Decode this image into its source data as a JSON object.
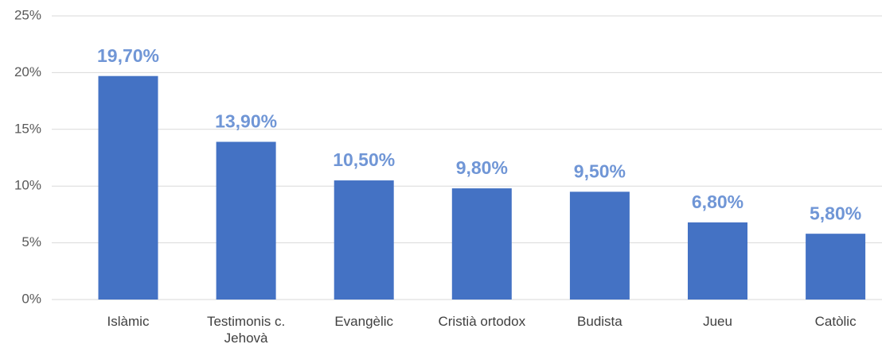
{
  "chart_data": {
    "type": "bar",
    "categories": [
      "Islàmic",
      "Testimonis c. Jehovà",
      "Evangèlic",
      "Cristià ortodox",
      "Budista",
      "Jueu",
      "Catòlic"
    ],
    "values": [
      19.7,
      13.9,
      10.5,
      9.8,
      9.5,
      6.8,
      5.8
    ],
    "value_labels": [
      "19,70%",
      "13,90%",
      "10,50%",
      "9,80%",
      "9,50%",
      "6,80%",
      "5,80%"
    ],
    "color": "#4472c4",
    "label_color": "#7096d6",
    "ylim": [
      0,
      25
    ],
    "yticks": [
      {
        "value": 0,
        "label": "0%"
      },
      {
        "value": 5,
        "label": "5%"
      },
      {
        "value": 10,
        "label": "10%"
      },
      {
        "value": 15,
        "label": "15%"
      },
      {
        "value": 20,
        "label": "20%"
      },
      {
        "value": 25,
        "label": "25%"
      }
    ],
    "grid": true
  }
}
